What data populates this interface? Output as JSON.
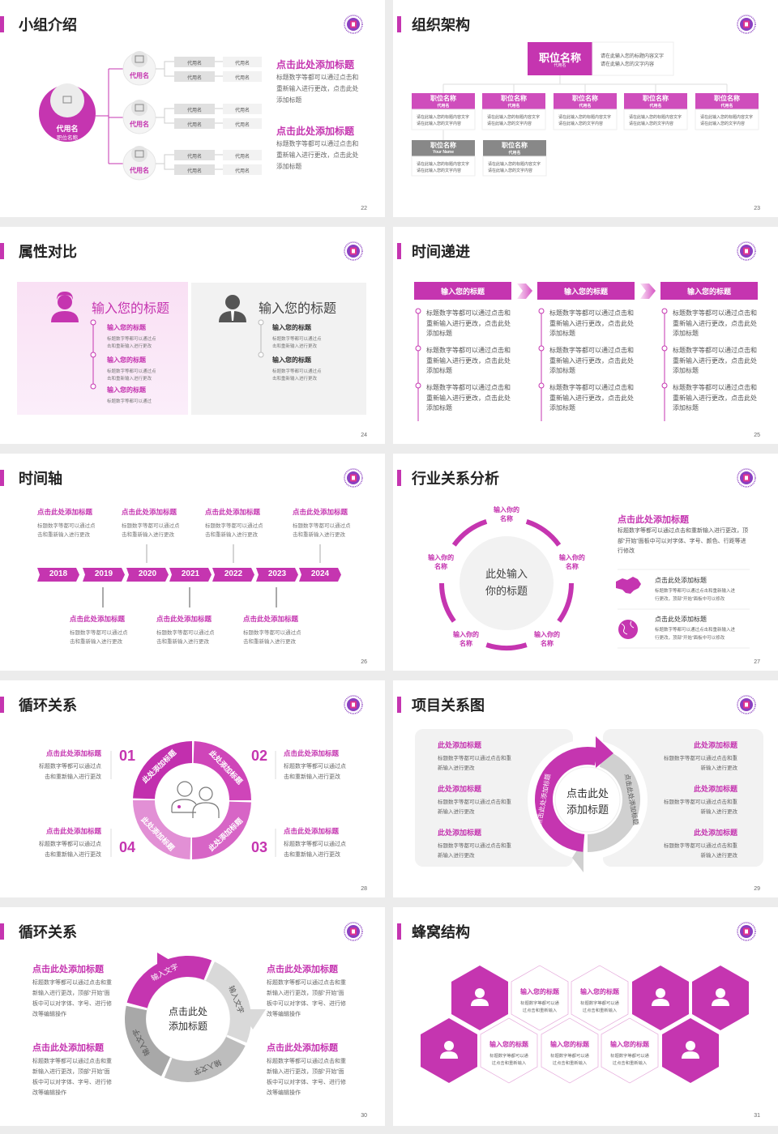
{
  "colors": {
    "accent": "#c535b0",
    "gray": "#888888",
    "panel": "#f2f2f2"
  },
  "slides": [
    {
      "title": "小组介绍",
      "page": "22",
      "center": {
        "name": "代用名",
        "role": "职位名称"
      },
      "branches": [
        {
          "name": "代用名",
          "cells": [
            "代用名",
            "代用名",
            "代用名",
            "代用名"
          ]
        },
        {
          "name": "代用名",
          "cells": [
            "代用名",
            "代用名",
            "代用名",
            "代用名"
          ]
        },
        {
          "name": "代用名",
          "cells": [
            "代用名",
            "代用名",
            "代用名",
            "代用名"
          ]
        }
      ],
      "texts": [
        {
          "title": "点击此处添加标题",
          "body": "标题数字等都可以通过点击和重新输入进行更改，点击此处添加标题"
        },
        {
          "title": "点击此处添加标题",
          "body": "标题数字等都可以通过点击和重新输入进行更改，点击此处添加标题"
        }
      ]
    },
    {
      "title": "组织架构",
      "page": "23",
      "top": {
        "name": "职位名称",
        "sub": "代用名",
        "lines": [
          "请在此输入您的标题内容文字",
          "请在此输入您的文字内容"
        ]
      },
      "row1": [
        {
          "name": "职位名称",
          "sub": "代用名",
          "lines": [
            "请在此输入您的标题内容文字",
            "请在此输入您的文字内容"
          ]
        },
        {
          "name": "职位名称",
          "sub": "代用名",
          "lines": [
            "请在此输入您的标题内容文字",
            "请在此输入您的文字内容"
          ]
        },
        {
          "name": "职位名称",
          "sub": "代用名",
          "lines": [
            "请在此输入您的标题内容文字",
            "请在此输入您的文字内容"
          ]
        },
        {
          "name": "职位名称",
          "sub": "代用名",
          "lines": [
            "请在此输入您的标题内容文字",
            "请在此输入您的文字内容"
          ]
        },
        {
          "name": "职位名称",
          "sub": "代用名",
          "lines": [
            "请在此输入您的标题内容文字",
            "请在此输入您的文字内容"
          ]
        }
      ],
      "row2": [
        {
          "name": "职位名称",
          "sub": "Your Name",
          "lines": [
            "请在此输入您的标题内容文字",
            "请在此输入您的文字内容"
          ]
        },
        {
          "name": "职位名称",
          "sub": "代用名",
          "lines": [
            "请在此输入您的标题内容文字",
            "请在此输入您的文字内容"
          ]
        }
      ]
    },
    {
      "title": "属性对比",
      "page": "24",
      "left": {
        "heading": "输入您的标题",
        "icon": "female-user-icon",
        "items": [
          {
            "title": "输入您的标题",
            "lines": [
              "标题数字等都可以通过点",
              "击和重新输入进行更改"
            ]
          },
          {
            "title": "输入您的标题",
            "lines": [
              "标题数字等都可以通过点",
              "击和重新输入进行更改"
            ]
          },
          {
            "title": "输入您的标题",
            "lines": [
              "标题数字等都可以通过"
            ]
          }
        ]
      },
      "right": {
        "heading": "输入您的标题",
        "icon": "male-user-icon",
        "items": [
          {
            "title": "输入您的标题",
            "lines": [
              "标题数字等都可以通过点",
              "击和重新输入进行更改"
            ]
          },
          {
            "title": "输入您的标题",
            "lines": [
              "标题数字等都可以通过点",
              "击和重新输入进行更改"
            ]
          }
        ]
      }
    },
    {
      "title": "时间递进",
      "page": "25",
      "columns": [
        {
          "header": "输入您的标题",
          "items": [
            "标题数字等都可以通过点击和重新输入进行更改，点击此处添加标题",
            "标题数字等都可以通过点击和重新输入进行更改，点击此处添加标题",
            "标题数字等都可以通过点击和重新输入进行更改，点击此处添加标题"
          ]
        },
        {
          "header": "输入您的标题",
          "items": [
            "标题数字等都可以通过点击和重新输入进行更改，点击此处添加标题",
            "标题数字等都可以通过点击和重新输入进行更改，点击此处添加标题",
            "标题数字等都可以通过点击和重新输入进行更改，点击此处添加标题"
          ]
        },
        {
          "header": "输入您的标题",
          "items": [
            "标题数字等都可以通过点击和重新输入进行更改，点击此处添加标题",
            "标题数字等都可以通过点击和重新输入进行更改，点击此处添加标题",
            "标题数字等都可以通过点击和重新输入进行更改，点击此处添加标题"
          ]
        }
      ]
    },
    {
      "title": "时间轴",
      "page": "26",
      "years": [
        "2018",
        "2019",
        "2020",
        "2021",
        "2022",
        "2023",
        "2024"
      ],
      "top_items": [
        {
          "title": "点击此处添加标题",
          "lines": [
            "标题数字等都可以通过点",
            "击和重新输入进行更改"
          ]
        },
        {
          "title": "点击此处添加标题",
          "lines": [
            "标题数字等都可以通过点",
            "击和重新输入进行更改"
          ]
        },
        {
          "title": "点击此处添加标题",
          "lines": [
            "标题数字等都可以通过点",
            "击和重新输入进行更改"
          ]
        },
        {
          "title": "点击此处添加标题",
          "lines": [
            "标题数字等都可以通过点",
            "击和重新输入进行更改"
          ]
        }
      ],
      "bottom_items": [
        {
          "title": "点击此处添加标题",
          "lines": [
            "标题数字等都可以通过点",
            "击和重新输入进行更改"
          ]
        },
        {
          "title": "点击此处添加标题",
          "lines": [
            "标题数字等都可以通过点",
            "击和重新输入进行更改"
          ]
        },
        {
          "title": "点击此处添加标题",
          "lines": [
            "标题数字等都可以通过点",
            "击和重新输入进行更改"
          ]
        }
      ]
    },
    {
      "title": "行业关系分析",
      "page": "27",
      "center": [
        "此处输入",
        "你的标题"
      ],
      "nodes": [
        [
          "输入你的",
          "名称"
        ],
        [
          "输入你的",
          "名称"
        ],
        [
          "输入你的",
          "名称"
        ],
        [
          "输入你的",
          "名称"
        ],
        [
          "输入你的",
          "名称"
        ]
      ],
      "main": {
        "title": "点击此处添加标题",
        "body": "标题数字等都可以通过点击和重新输入进行更改，顶部“开始”面板中可以对字体、字号、颜色、行距等进行修改"
      },
      "items": [
        {
          "icon": "china-map-icon",
          "title": "点击此处添加标题",
          "body": "标题数字等都可以通过点击和重新输入进行更改，顶部“开始”面板中可以修改"
        },
        {
          "icon": "globe-icon",
          "title": "点击此处添加标题",
          "body": "标题数字等都可以通过点击和重新输入进行更改，顶部“开始”面板中可以修改"
        }
      ]
    },
    {
      "title": "循环关系",
      "page": "28",
      "segments": [
        "此处添加标题",
        "此处添加标题",
        "此处添加标题",
        "此处添加标题"
      ],
      "numbers": [
        "01",
        "02",
        "03",
        "04"
      ],
      "blocks": [
        {
          "title": "点击此处添加标题",
          "lines": [
            "标题数字等都可以通过点",
            "击和重新输入进行更改"
          ]
        },
        {
          "title": "点击此处添加标题",
          "lines": [
            "标题数字等都可以通过点",
            "击和重新输入进行更改"
          ]
        },
        {
          "title": "点击此处添加标题",
          "lines": [
            "标题数字等都可以通过点",
            "击和重新输入进行更改"
          ]
        },
        {
          "title": "点击此处添加标题",
          "lines": [
            "标题数字等都可以通过点",
            "击和重新输入进行更改"
          ]
        }
      ]
    },
    {
      "title": "项目关系图",
      "page": "29",
      "center": [
        "点击此处",
        "添加标题"
      ],
      "arcs": [
        "点击此处添加标题",
        "点击此处添加标题"
      ],
      "left": [
        {
          "title": "此处添加标题",
          "lines": [
            "标题数字等都可以通过点击和重",
            "新输入进行更改"
          ]
        },
        {
          "title": "此处添加标题",
          "lines": [
            "标题数字等都可以通过点击和重",
            "新输入进行更改"
          ]
        },
        {
          "title": "此处添加标题",
          "lines": [
            "标题数字等都可以通过点击和重",
            "新输入进行更改"
          ]
        }
      ],
      "right": [
        {
          "title": "此处添加标题",
          "lines": [
            "标题数字等都可以通过点击和重",
            "新输入进行更改"
          ]
        },
        {
          "title": "此处添加标题",
          "lines": [
            "标题数字等都可以通过点击和重",
            "新输入进行更改"
          ]
        },
        {
          "title": "此处添加标题",
          "lines": [
            "标题数字等都可以通过点击和重",
            "新输入进行更改"
          ]
        }
      ]
    },
    {
      "title": "循环关系",
      "page": "30",
      "center": [
        "点击此处",
        "添加标题"
      ],
      "segments": [
        "输入文字",
        "输入文字",
        "输入文字",
        "输入文字"
      ],
      "blocks": [
        {
          "title": "点击此处添加标题",
          "body": "标题数字等都可以通过点击和重新输入进行更改，顶部“开始”面板中可以对字体、字号、进行修改等编辑操作"
        },
        {
          "title": "点击此处添加标题",
          "body": "标题数字等都可以通过点击和重新输入进行更改，顶部“开始”面板中可以对字体、字号、进行修改等编辑操作"
        },
        {
          "title": "点击此处添加标题",
          "body": "标题数字等都可以通过点击和重新输入进行更改，顶部“开始”面板中可以对字体、字号、进行修改等编辑操作"
        },
        {
          "title": "点击此处添加标题",
          "body": "标题数字等都可以通过点击和重新输入进行更改，顶部“开始”面板中可以对字体、字号、进行修改等编辑操作"
        }
      ]
    },
    {
      "title": "蜂窝结构",
      "page": "31",
      "top_row": [
        {
          "icon": "add-user-icon"
        },
        {
          "title": "输入您的标题",
          "lines": [
            "标题数字等都可以通",
            "过点击和重新输入"
          ]
        },
        {
          "title": "输入您的标题",
          "lines": [
            "标题数字等都可以通",
            "过点击和重新输入"
          ]
        },
        {
          "icon": "female-user-icon"
        },
        {
          "icon": "user-presentation-icon"
        }
      ],
      "bottom_row": [
        {
          "icon": "customer-service-icon"
        },
        {
          "title": "输入您的标题",
          "lines": [
            "标题数字等都可以通",
            "过点击和重新输入"
          ]
        },
        {
          "title": "输入您的标题",
          "lines": [
            "标题数字等都可以通",
            "过点击和重新输入"
          ]
        },
        {
          "title": "输入您的标题",
          "lines": [
            "标题数字等都可以通",
            "过点击和重新输入"
          ]
        },
        {
          "icon": "user-shield-icon"
        }
      ]
    }
  ]
}
